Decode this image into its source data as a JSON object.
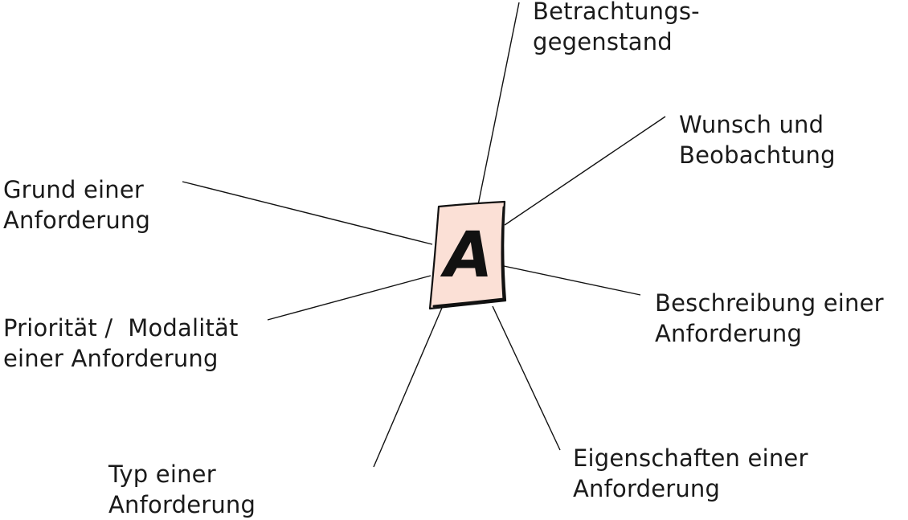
{
  "center": {
    "letter": "A"
  },
  "labels": {
    "betrachtungsgegenstand": {
      "line1": "Betrachtungs-",
      "line2": "gegenstand"
    },
    "wunsch": {
      "line1": "Wunsch und",
      "line2": "Beobachtung"
    },
    "grund": {
      "line1": "Grund einer",
      "line2": "Anforderung"
    },
    "beschreibung": {
      "line1": "Beschreibung einer",
      "line2": "Anforderung"
    },
    "prioritaet": {
      "line1": "Priorität /  Modalität",
      "line2": "einer Anforderung"
    },
    "eigenschaften": {
      "line1": "Eigenschaften einer",
      "line2": "Anforderung"
    },
    "typ": {
      "line1": "Typ einer",
      "line2": "Anforderung"
    }
  },
  "colors": {
    "card_fill": "#fbe0d6",
    "stroke": "#111111",
    "text": "#1a1a1a"
  }
}
